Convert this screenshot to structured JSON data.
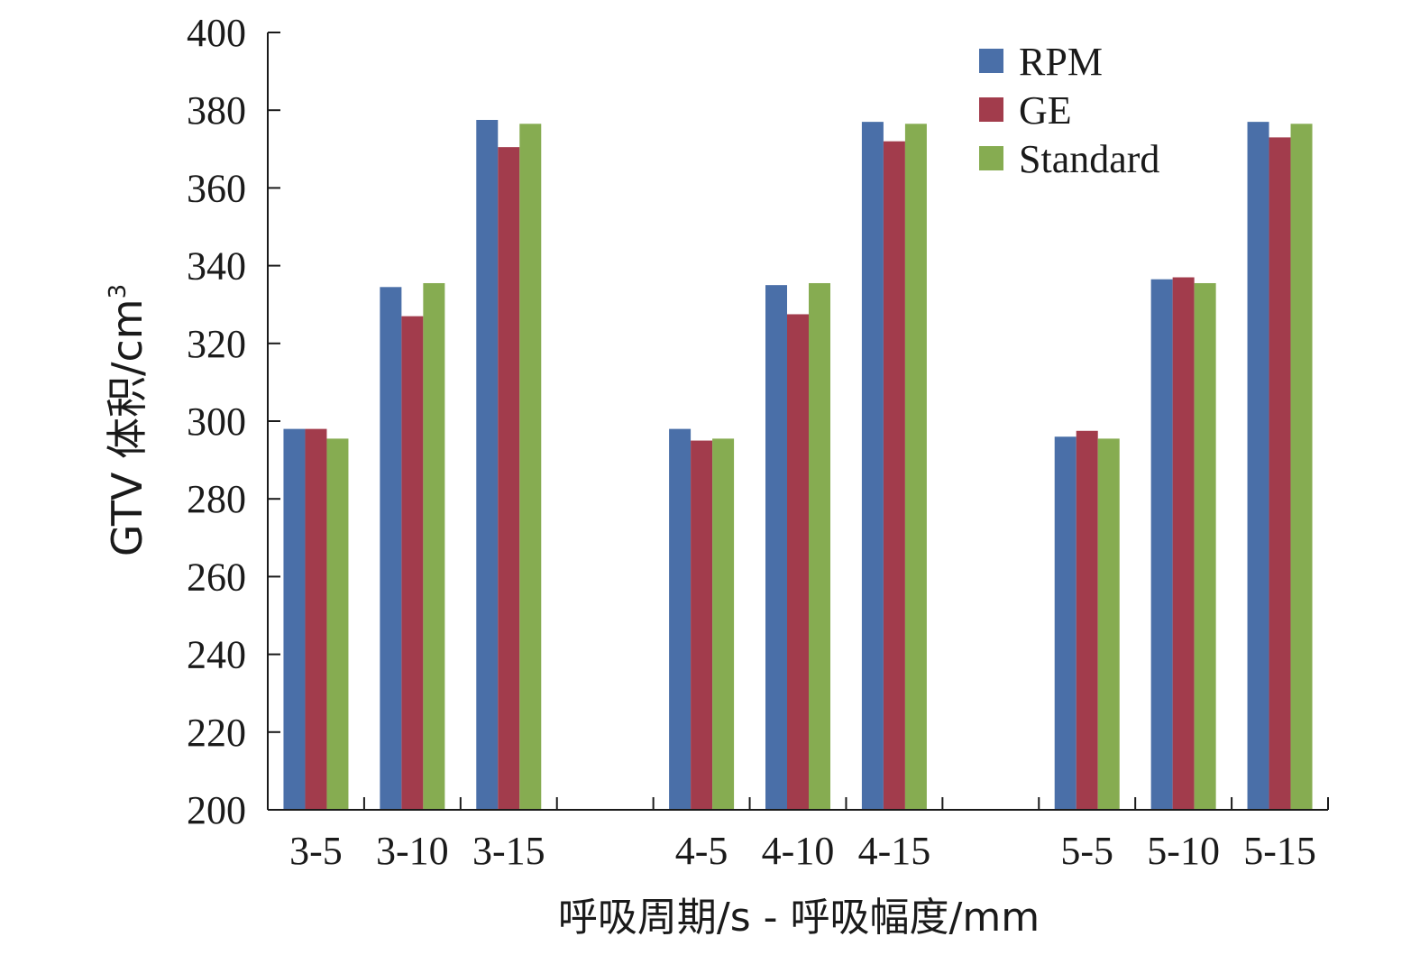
{
  "chart_data": {
    "type": "bar",
    "categories": [
      "3-5",
      "3-10",
      "3-15",
      "",
      "4-5",
      "4-10",
      "4-15",
      "",
      "5-5",
      "5-10",
      "5-15"
    ],
    "series": [
      {
        "name": "RPM",
        "color": "#4A6FA8",
        "values": [
          298,
          334.5,
          377.5,
          null,
          298,
          335,
          377,
          null,
          296,
          336.5,
          377
        ]
      },
      {
        "name": "GE",
        "color": "#A23C4C",
        "values": [
          298,
          327,
          370.5,
          null,
          295,
          327.5,
          372,
          null,
          297.5,
          337,
          373
        ]
      },
      {
        "name": "Standard",
        "color": "#86AC51",
        "values": [
          295.5,
          335.5,
          376.5,
          null,
          295.5,
          335.5,
          376.5,
          null,
          295.5,
          335.5,
          376.5
        ]
      }
    ],
    "ylim": [
      200,
      400
    ],
    "yticks": [
      200,
      220,
      240,
      260,
      280,
      300,
      320,
      340,
      360,
      380,
      400
    ],
    "xlabel": "呼吸周期/s - 呼吸幅度/mm",
    "ylabel_main": "GTV 体积/cm",
    "ylabel_sup": "3",
    "legend_position": "top-right",
    "grid": false
  }
}
